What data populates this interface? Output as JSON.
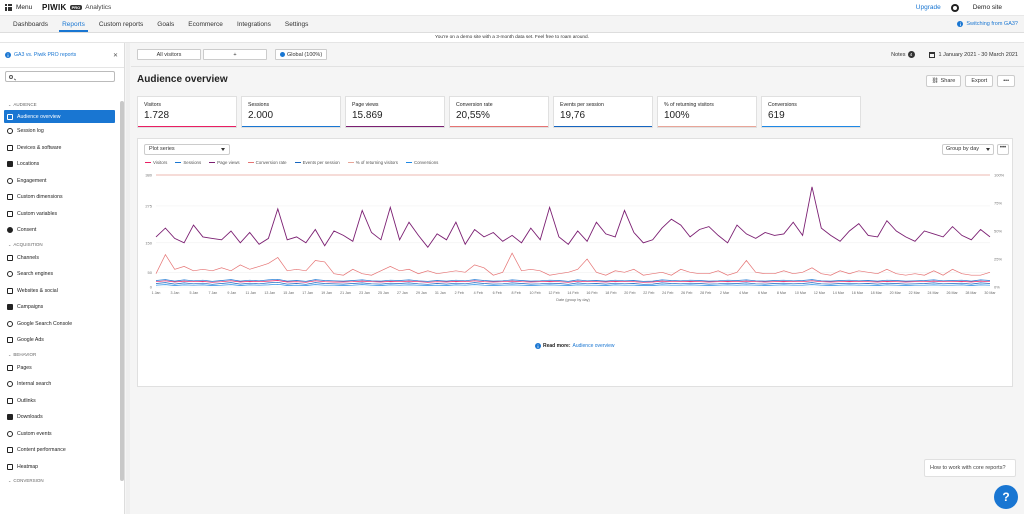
{
  "topbar": {
    "menu_label": "Menu",
    "logo": "PIWIK",
    "logo_badge": "PRO",
    "product": "Analytics",
    "upgrade": "Upgrade",
    "site": "Demo site"
  },
  "nav": {
    "tabs": [
      "Dashboards",
      "Reports",
      "Custom reports",
      "Goals",
      "Ecommerce",
      "Integrations",
      "Settings"
    ],
    "active": "Reports",
    "switch_link": "Switching from GA3?"
  },
  "notice": "You're on a demo site with a 3-month data set. Feel free to roam around.",
  "sidebar": {
    "ga3_link": "GA3 vs. Piwik PRO reports",
    "search_placeholder": "",
    "sections": [
      {
        "title": "AUDIENCE",
        "items": [
          "Audience overview",
          "Session log",
          "Devices & software",
          "Locations",
          "Engagement",
          "Custom dimensions",
          "Custom variables",
          "Consent"
        ]
      },
      {
        "title": "ACQUISITION",
        "items": [
          "Channels",
          "Search engines",
          "Websites & social",
          "Campaigns",
          "Google Search Console",
          "Google Ads"
        ]
      },
      {
        "title": "BEHAVIOR",
        "items": [
          "Pages",
          "Internal search",
          "Outlinks",
          "Downloads",
          "Custom events",
          "Content performance",
          "Heatmap"
        ]
      },
      {
        "title": "CONVERSION",
        "items": []
      }
    ],
    "active_item": "Audience overview"
  },
  "toolbar": {
    "segment": "All visitors",
    "add": "+",
    "global": "Global (100%)",
    "notes_label": "Notes",
    "notes_count": "4",
    "date_range": "1 January 2021 - 30 March 2021"
  },
  "page": {
    "title": "Audience overview",
    "share": "Share",
    "export": "Export",
    "more": "•••"
  },
  "cards": [
    {
      "label": "Visitors",
      "value": "1.728",
      "color": "#e91e63"
    },
    {
      "label": "Sessions",
      "value": "2.000",
      "color": "#1976d2"
    },
    {
      "label": "Page views",
      "value": "15.869",
      "color": "#7b1f72"
    },
    {
      "label": "Conversion rate",
      "value": "20,55%",
      "color": "#e57373"
    },
    {
      "label": "Events per session",
      "value": "19,76",
      "color": "#1565c0"
    },
    {
      "label": "% of returning visitors",
      "value": "100%",
      "color": "#e8a598"
    },
    {
      "label": "Conversions",
      "value": "619",
      "color": "#1e88e5"
    }
  ],
  "chart_controls": {
    "plot_series": "Plot series",
    "group_by": "Group by day",
    "more": "•••"
  },
  "chart_data": {
    "type": "line",
    "legend": [
      "Visitors",
      "Sessions",
      "Page views",
      "Conversion rate",
      "Events per session",
      "% of returning visitors",
      "Conversions"
    ],
    "xlabel": "Date (group by day)",
    "y_left_ticks": [
      0,
      50,
      150,
      275,
      380
    ],
    "y_left_lim": [
      0,
      380
    ],
    "y_right_ticks": [
      "0%",
      "25%",
      "50%",
      "75%",
      "100%"
    ],
    "x_ticks": [
      "1 Jan",
      "3 Jan",
      "5 Jan",
      "7 Jan",
      "9 Jan",
      "11 Jan",
      "13 Jan",
      "15 Jan",
      "17 Jan",
      "19 Jan",
      "21 Jan",
      "23 Jan",
      "25 Jan",
      "27 Jan",
      "29 Jan",
      "31 Jan",
      "2 Feb",
      "4 Feb",
      "6 Feb",
      "8 Feb",
      "10 Feb",
      "12 Feb",
      "14 Feb",
      "16 Feb",
      "18 Feb",
      "20 Feb",
      "22 Feb",
      "24 Feb",
      "26 Feb",
      "28 Feb",
      "2 Mar",
      "4 Mar",
      "6 Mar",
      "8 Mar",
      "10 Mar",
      "12 Mar",
      "14 Mar",
      "16 Mar",
      "18 Mar",
      "20 Mar",
      "22 Mar",
      "24 Mar",
      "26 Mar",
      "28 Mar",
      "30 Mar"
    ],
    "series": [
      {
        "name": "Page views",
        "color": "#7b1f72",
        "axis": "left",
        "values": [
          170,
          200,
          165,
          150,
          210,
          170,
          165,
          160,
          190,
          150,
          185,
          145,
          165,
          265,
          160,
          170,
          150,
          195,
          140,
          190,
          175,
          155,
          260,
          185,
          160,
          270,
          160,
          220,
          175,
          135,
          180,
          160,
          220,
          145,
          195,
          170,
          185,
          155,
          175,
          150,
          200,
          160,
          270,
          170,
          145,
          190,
          155,
          220,
          180,
          170,
          260,
          185,
          150,
          160,
          200,
          230,
          210,
          170,
          195,
          205,
          175,
          150,
          210,
          180,
          165,
          185,
          175,
          180,
          220,
          175,
          340,
          200,
          175,
          155,
          190,
          215,
          175,
          170,
          225,
          190,
          170,
          155,
          190,
          180,
          170,
          205,
          175,
          160,
          195,
          170
        ]
      },
      {
        "name": "Conversion rate",
        "color": "#e57373",
        "axis": "left",
        "values": [
          45,
          110,
          60,
          70,
          55,
          60,
          55,
          65,
          55,
          75,
          60,
          70,
          80,
          100,
          55,
          60,
          55,
          90,
          85,
          45,
          40,
          60,
          45,
          40,
          55,
          70,
          55,
          60,
          45,
          55,
          45,
          50,
          55,
          50,
          75,
          65,
          40,
          50,
          115,
          55,
          60,
          55,
          40,
          45,
          50,
          60,
          95,
          50,
          40,
          55,
          50,
          60,
          40,
          45,
          50,
          40,
          60,
          50,
          45,
          45,
          55,
          40,
          50,
          90,
          50,
          45,
          45,
          55,
          45,
          50,
          65,
          45,
          40,
          55,
          45,
          55,
          50,
          45,
          60,
          45,
          40,
          45,
          40,
          55,
          40,
          60,
          45,
          40,
          40,
          50
        ]
      },
      {
        "name": "% of returning visitors",
        "color": "#e8a598",
        "axis": "right",
        "values": [
          100,
          100,
          100,
          100,
          100,
          100,
          100,
          100,
          100,
          100,
          100,
          100,
          100,
          100,
          100,
          100,
          100,
          100,
          100,
          100,
          100,
          100,
          100,
          100,
          100,
          100,
          100,
          100,
          100,
          100,
          100,
          100,
          100,
          100,
          100,
          100,
          100,
          100,
          100,
          100,
          100,
          100,
          100,
          100,
          100,
          100,
          100,
          100,
          100,
          100,
          100,
          100,
          100,
          100,
          100,
          100,
          100,
          100,
          100,
          100,
          100,
          100,
          100,
          100,
          100,
          100,
          100,
          100,
          100,
          100,
          100,
          100,
          100,
          100,
          100,
          100,
          100,
          100,
          100,
          100,
          100,
          100,
          100,
          100,
          100,
          100,
          100,
          100,
          100,
          100
        ]
      },
      {
        "name": "Sessions",
        "color": "#1976d2",
        "axis": "left",
        "values": [
          22,
          25,
          20,
          24,
          21,
          23,
          19,
          22,
          25,
          20,
          23,
          21,
          24,
          26,
          20,
          22,
          19,
          25,
          22,
          21,
          20,
          22,
          24,
          21,
          20,
          23,
          22,
          24,
          21,
          19,
          22,
          20,
          23,
          21,
          25,
          22,
          20,
          21,
          24,
          22,
          20,
          21,
          23,
          22,
          19,
          24,
          21,
          22,
          20,
          23,
          21,
          22,
          19,
          20,
          24,
          22,
          21,
          23,
          22,
          20,
          21,
          23,
          22,
          24,
          21,
          20,
          22,
          23,
          21,
          22,
          25,
          21,
          20,
          22,
          23,
          21,
          22,
          20,
          23,
          22,
          20,
          21,
          22,
          24,
          21,
          22,
          23,
          20,
          24,
          22
        ]
      },
      {
        "name": "Visitors",
        "color": "#e91e63",
        "axis": "left",
        "values": [
          18,
          21,
          17,
          20,
          18,
          19,
          16,
          18,
          21,
          17,
          19,
          18,
          20,
          22,
          17,
          18,
          16,
          21,
          18,
          17,
          17,
          18,
          20,
          18,
          17,
          19,
          18,
          20,
          18,
          16,
          18,
          17,
          19,
          18,
          21,
          18,
          17,
          18,
          20,
          18,
          17,
          18,
          19,
          18,
          16,
          20,
          18,
          18,
          17,
          19,
          18,
          18,
          16,
          17,
          20,
          18,
          18,
          19,
          18,
          17,
          18,
          19,
          18,
          20,
          18,
          17,
          18,
          19,
          18,
          18,
          21,
          18,
          17,
          18,
          19,
          18,
          18,
          17,
          19,
          18,
          17,
          18,
          18,
          20,
          18,
          18,
          19,
          17,
          20,
          18
        ]
      },
      {
        "name": "Events per session",
        "color": "#1565c0",
        "axis": "left",
        "values": [
          12,
          15,
          10,
          14,
          11,
          13,
          9,
          12,
          15,
          10,
          13,
          11,
          14,
          16,
          10,
          12,
          9,
          15,
          12,
          11,
          10,
          12,
          14,
          11,
          10,
          13,
          12,
          14,
          11,
          9,
          12,
          10,
          13,
          11,
          15,
          12,
          10,
          11,
          14,
          12,
          10,
          11,
          13,
          12,
          9,
          14,
          11,
          12,
          10,
          13,
          11,
          12,
          9,
          10,
          14,
          12,
          11,
          13,
          12,
          10,
          11,
          13,
          12,
          14,
          11,
          10,
          12,
          13,
          11,
          12,
          15,
          11,
          10,
          12,
          13,
          11,
          12,
          10,
          13,
          12,
          10,
          11,
          12,
          14,
          11,
          12,
          13,
          10,
          14,
          12
        ]
      },
      {
        "name": "Conversions",
        "color": "#1e88e5",
        "axis": "left",
        "values": [
          6,
          8,
          5,
          7,
          6,
          7,
          5,
          6,
          8,
          5,
          7,
          6,
          7,
          9,
          5,
          6,
          5,
          8,
          6,
          6,
          5,
          6,
          8,
          6,
          5,
          7,
          6,
          7,
          6,
          5,
          6,
          5,
          7,
          6,
          8,
          6,
          5,
          6,
          7,
          6,
          5,
          6,
          7,
          6,
          5,
          7,
          6,
          6,
          5,
          7,
          6,
          6,
          5,
          5,
          7,
          6,
          6,
          7,
          6,
          5,
          6,
          7,
          6,
          7,
          6,
          5,
          6,
          7,
          6,
          6,
          8,
          6,
          5,
          6,
          7,
          6,
          6,
          5,
          7,
          6,
          5,
          6,
          6,
          7,
          6,
          6,
          7,
          5,
          7,
          6
        ]
      }
    ]
  },
  "read_more": {
    "label": "Read more:",
    "link": "Audience overview"
  },
  "help": {
    "bubble": "How to work with core reports?",
    "button": "?"
  }
}
